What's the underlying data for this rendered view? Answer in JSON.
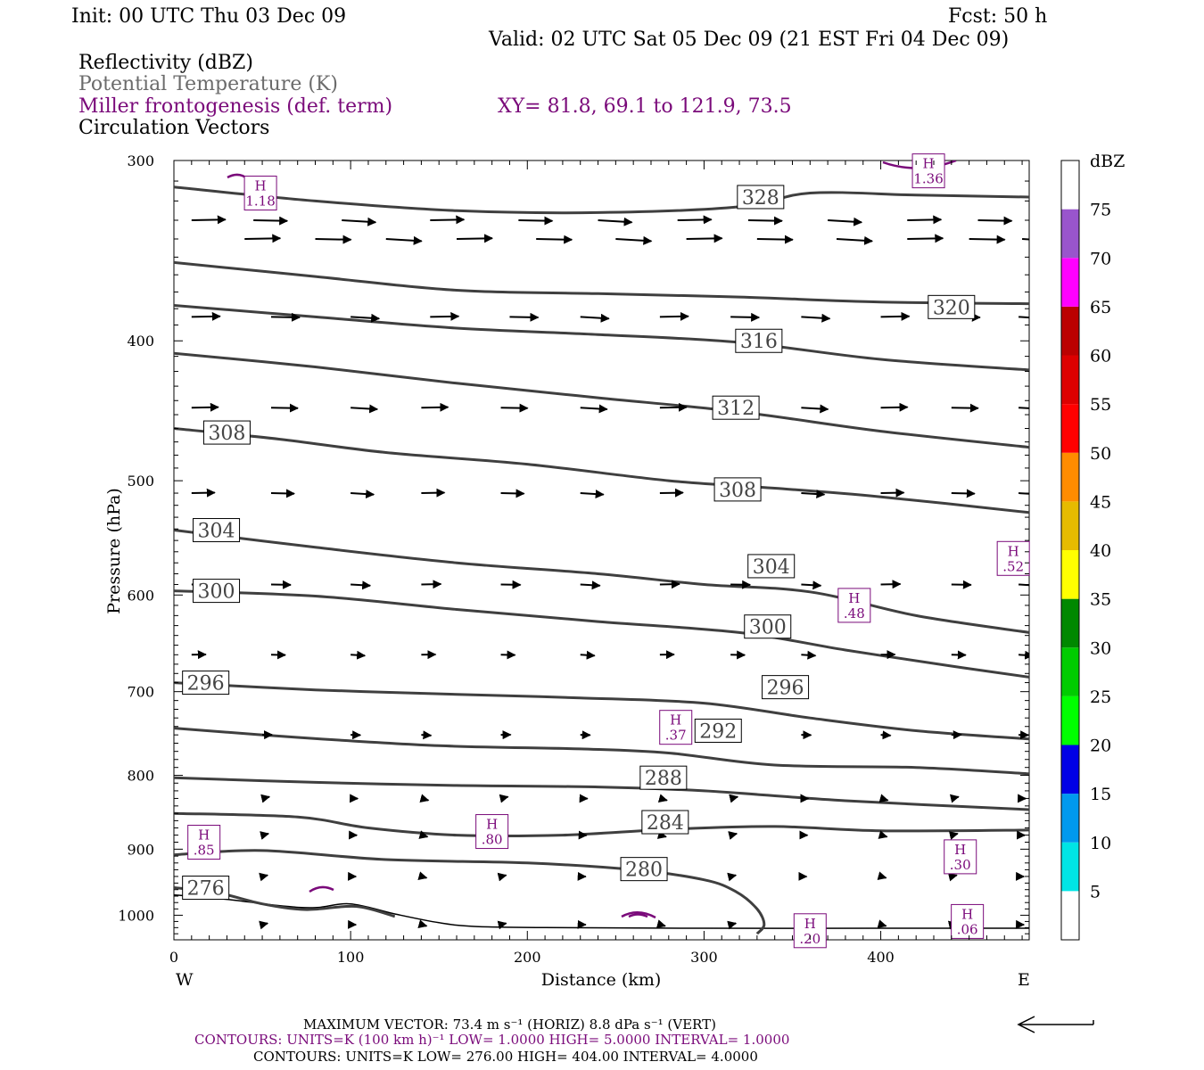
{
  "header": {
    "init": "Init: 00 UTC Thu 03 Dec 09",
    "fcst": "Fcst:   50 h",
    "valid": "Valid: 02 UTC Sat 05 Dec 09 (21 EST Fri 04 Dec 09)",
    "field_reflectivity": "Reflectivity (dBZ)",
    "field_theta": "Potential Temperature (K)",
    "field_frontogenesis": "Miller frontogenesis (def. term)",
    "xy": "XY=  81.8, 69.1 to 121.9, 73.5",
    "field_vectors": "Circulation Vectors"
  },
  "footer": {
    "max_vector": "MAXIMUM VECTOR:  73.4 m s⁻¹ (HORIZ)         8.8 dPa s⁻¹ (VERT)",
    "contours_fronto": "CONTOURS:  UNITS=K (100 km h)⁻¹  LOW=   1.0000        HIGH=  5.0000       INTERVAL=    1.0000",
    "contours_theta": "CONTOURS:  UNITS=K  LOW=   276.00        HIGH=  404.00        INTERVAL=    4.0000"
  },
  "colors": {
    "isentrope": "#3f3f3f",
    "frontogenesis": "#7a0a7a",
    "vectors": "#000000"
  },
  "chart_data": {
    "type": "cross-section",
    "xlabel": "Distance (km)",
    "ylabel": "Pressure (hPa)",
    "x_ticks": [
      0,
      100,
      200,
      300,
      400
    ],
    "y_ticks": [
      300,
      400,
      500,
      600,
      700,
      800,
      900,
      1000
    ],
    "xlim": [
      0,
      484
    ],
    "ylim": [
      1040,
      300
    ],
    "y_scale": "log",
    "grid": false,
    "west_label": "W",
    "east_label": "E",
    "colorbar": {
      "title": "dBZ",
      "labels": [
        "5",
        "10",
        "15",
        "20",
        "25",
        "30",
        "35",
        "40",
        "45",
        "50",
        "55",
        "60",
        "65",
        "70",
        "75"
      ],
      "colors": [
        "#ffffff",
        "#00e5e5",
        "#0099ee",
        "#0000e6",
        "#00ff00",
        "#00cc00",
        "#008800",
        "#ffff00",
        "#e6bb00",
        "#ff8c00",
        "#ff0000",
        "#dd0000",
        "#bb0000",
        "#ff00ff",
        "#9955cc",
        "#ffffff"
      ]
    },
    "isentropes": [
      {
        "value": "276",
        "points": [
          [
            0,
            957
          ],
          [
            25,
            965
          ],
          [
            50,
            982
          ],
          [
            75,
            991
          ],
          [
            103,
            986
          ],
          [
            125,
            1002
          ]
        ],
        "labels": [
          {
            "x": 18,
            "p": 957
          }
        ]
      },
      {
        "value": "280",
        "points": [
          [
            0,
            908
          ],
          [
            50,
            902
          ],
          [
            120,
            915
          ],
          [
            200,
            920
          ],
          [
            260,
            930
          ],
          [
            300,
            945
          ],
          [
            318,
            963
          ],
          [
            330,
            990
          ],
          [
            334,
            1015
          ],
          [
            330,
            1030
          ]
        ],
        "labels": [
          {
            "x": 266,
            "p": 929
          }
        ]
      },
      {
        "value": "284",
        "points": [
          [
            0,
            850
          ],
          [
            70,
            855
          ],
          [
            110,
            870
          ],
          [
            160,
            880
          ],
          [
            220,
            880
          ],
          [
            280,
            872
          ],
          [
            340,
            868
          ],
          [
            400,
            874
          ],
          [
            484,
            873
          ]
        ],
        "labels": [
          {
            "x": 278,
            "p": 862
          }
        ]
      },
      {
        "value": "288",
        "points": [
          [
            0,
            803
          ],
          [
            80,
            809
          ],
          [
            160,
            813
          ],
          [
            240,
            815
          ],
          [
            300,
            820
          ],
          [
            380,
            833
          ],
          [
            484,
            845
          ]
        ],
        "labels": [
          {
            "x": 277,
            "p": 803
          }
        ]
      },
      {
        "value": "292",
        "points": [
          [
            0,
            742
          ],
          [
            70,
            753
          ],
          [
            150,
            763
          ],
          [
            230,
            767
          ],
          [
            280,
            772
          ],
          [
            340,
            787
          ],
          [
            420,
            790
          ],
          [
            484,
            798
          ]
        ],
        "labels": [
          {
            "x": 308,
            "p": 745
          }
        ]
      },
      {
        "value": "296",
        "points": [
          [
            0,
            690
          ],
          [
            80,
            698
          ],
          [
            160,
            703
          ],
          [
            230,
            707
          ],
          [
            300,
            713
          ],
          [
            360,
            730
          ],
          [
            420,
            745
          ],
          [
            484,
            755
          ]
        ],
        "labels": [
          {
            "x": 18,
            "p": 690
          },
          {
            "x": 346,
            "p": 695
          }
        ]
      },
      {
        "value": "300",
        "points": [
          [
            0,
            596
          ],
          [
            80,
            601
          ],
          [
            160,
            614
          ],
          [
            240,
            626
          ],
          [
            320,
            637
          ],
          [
            380,
            655
          ],
          [
            440,
            672
          ],
          [
            484,
            684
          ]
        ],
        "labels": [
          {
            "x": 24,
            "p": 596
          },
          {
            "x": 336,
            "p": 631
          }
        ]
      },
      {
        "value": "304",
        "points": [
          [
            0,
            541
          ],
          [
            80,
            556
          ],
          [
            160,
            570
          ],
          [
            240,
            580
          ],
          [
            300,
            590
          ],
          [
            360,
            597
          ],
          [
            420,
            620
          ],
          [
            484,
            637
          ]
        ],
        "labels": [
          {
            "x": 24,
            "p": 541
          },
          {
            "x": 338,
            "p": 573
          }
        ]
      },
      {
        "value": "308",
        "points": [
          [
            0,
            460
          ],
          [
            60,
            468
          ],
          [
            120,
            478
          ],
          [
            200,
            487
          ],
          [
            280,
            500
          ],
          [
            340,
            506
          ],
          [
            400,
            513
          ],
          [
            484,
            526
          ]
        ],
        "labels": [
          {
            "x": 30,
            "p": 463
          },
          {
            "x": 319,
            "p": 507
          }
        ]
      },
      {
        "value": "312",
        "points": [
          [
            0,
            408
          ],
          [
            80,
            417
          ],
          [
            160,
            428
          ],
          [
            240,
            438
          ],
          [
            320,
            448
          ],
          [
            400,
            462
          ],
          [
            484,
            474
          ]
        ],
        "labels": [
          {
            "x": 318,
            "p": 445
          }
        ]
      },
      {
        "value": "316",
        "points": [
          [
            0,
            378
          ],
          [
            80,
            385
          ],
          [
            160,
            392
          ],
          [
            240,
            396
          ],
          [
            320,
            401
          ],
          [
            400,
            412
          ],
          [
            484,
            419
          ]
        ],
        "labels": [
          {
            "x": 331,
            "p": 400
          }
        ]
      },
      {
        "value": "320",
        "points": [
          [
            0,
            353
          ],
          [
            80,
            361
          ],
          [
            160,
            369
          ],
          [
            240,
            371
          ],
          [
            320,
            373
          ],
          [
            400,
            376
          ],
          [
            484,
            377
          ]
        ],
        "labels": [
          {
            "x": 440,
            "p": 379
          }
        ]
      },
      {
        "value": "328",
        "points": [
          [
            0,
            313
          ],
          [
            80,
            320
          ],
          [
            160,
            325
          ],
          [
            240,
            326
          ],
          [
            320,
            323
          ],
          [
            360,
            316
          ],
          [
            420,
            317
          ],
          [
            484,
            318
          ]
        ],
        "labels": [
          {
            "x": 332,
            "p": 318
          }
        ]
      }
    ],
    "frontogenesis_maxima": [
      {
        "label": "H",
        "value": "1.18",
        "x": 49,
        "p": 316
      },
      {
        "label": "H",
        "value": "1.36",
        "x": 427,
        "p": 305
      },
      {
        "label": "H",
        "value": ".52",
        "x": 475,
        "p": 566
      },
      {
        "label": "H",
        "value": ".48",
        "x": 385,
        "p": 610
      },
      {
        "label": "H",
        "value": ".37",
        "x": 284,
        "p": 741
      },
      {
        "label": "H",
        "value": ".80",
        "x": 180,
        "p": 875
      },
      {
        "label": "H",
        "value": ".85",
        "x": 17,
        "p": 890
      },
      {
        "label": "H",
        "value": ".30",
        "x": 445,
        "p": 911
      },
      {
        "label": "H",
        "value": ".06",
        "x": 449,
        "p": 1010
      },
      {
        "label": "H",
        "value": ".20",
        "x": 360,
        "p": 1025
      }
    ]
  }
}
